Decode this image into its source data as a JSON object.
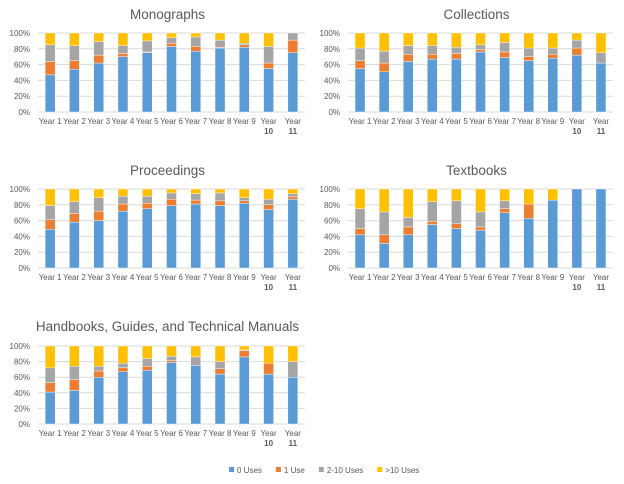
{
  "colors": {
    "0 Uses": "#5B9BD5",
    "1 Use": "#ED7D31",
    "2-10 Uses": "#A5A5A5",
    ">10 Uses": "#FFC000"
  },
  "legend": [
    "0 Uses",
    "1 Use",
    "2-10 Uses",
    ">10 Uses"
  ],
  "legend_placement": "bottom",
  "chart_data": [
    {
      "type": "bar",
      "stacked": "percent",
      "title": "Monographs",
      "ylim": [
        0,
        100
      ],
      "yticks": [
        "0%",
        "20%",
        "40%",
        "60%",
        "80%",
        "100%"
      ],
      "grid": true,
      "categories": [
        "Year 1",
        "Year 2",
        "Year 3",
        "Year 4",
        "Year 5",
        "Year 6",
        "Year 7",
        "Year 8",
        "Year 9",
        "Year 10",
        "Year 11"
      ],
      "series": [
        {
          "name": "0 Uses",
          "values": [
            47,
            54,
            62,
            70,
            75,
            83,
            77,
            81,
            82,
            55,
            75
          ]
        },
        {
          "name": "1 Use",
          "values": [
            17,
            11,
            10,
            4,
            1,
            4,
            6,
            1,
            3,
            7,
            16
          ]
        },
        {
          "name": "2-10 Uses",
          "values": [
            21,
            19,
            17,
            10,
            14,
            7,
            12,
            9,
            2,
            21,
            9
          ]
        },
        {
          "name": ">10 Uses",
          "values": [
            15,
            16,
            11,
            16,
            10,
            6,
            5,
            9,
            13,
            17,
            0
          ]
        }
      ]
    },
    {
      "type": "bar",
      "stacked": "percent",
      "title": "Collections",
      "ylim": [
        0,
        100
      ],
      "yticks": [
        "0%",
        "20%",
        "40%",
        "60%",
        "80%",
        "100%"
      ],
      "grid": true,
      "categories": [
        "Year 1",
        "Year 2",
        "Year 3",
        "Year 4",
        "Year 5",
        "Year 6",
        "Year 7",
        "Year 8",
        "Year 9",
        "Year 10",
        "Year 11"
      ],
      "series": [
        {
          "name": "0 Uses",
          "values": [
            55,
            51,
            64,
            67,
            67,
            76,
            69,
            65,
            68,
            72,
            62
          ]
        },
        {
          "name": "1 Use",
          "values": [
            10,
            11,
            9,
            6,
            7,
            3,
            7,
            5,
            5,
            9,
            0
          ]
        },
        {
          "name": "2-10 Uses",
          "values": [
            16,
            15,
            11,
            11,
            8,
            6,
            12,
            11,
            8,
            10,
            13
          ]
        },
        {
          "name": ">10 Uses",
          "values": [
            19,
            23,
            16,
            16,
            18,
            15,
            12,
            19,
            19,
            9,
            25
          ]
        }
      ]
    },
    {
      "type": "bar",
      "stacked": "percent",
      "title": "Proceedings",
      "ylim": [
        0,
        100
      ],
      "yticks": [
        "0%",
        "20%",
        "40%",
        "60%",
        "80%",
        "100%"
      ],
      "grid": true,
      "categories": [
        "Year 1",
        "Year 2",
        "Year 3",
        "Year 4",
        "Year 5",
        "Year 6",
        "Year 7",
        "Year 8",
        "Year 9",
        "Year 10",
        "Year 11"
      ],
      "series": [
        {
          "name": "0 Uses",
          "values": [
            49,
            58,
            60,
            72,
            75,
            79,
            81,
            79,
            82,
            74,
            87
          ]
        },
        {
          "name": "1 Use",
          "values": [
            12,
            11,
            12,
            9,
            7,
            8,
            5,
            6,
            3,
            6,
            3
          ]
        },
        {
          "name": "2-10 Uses",
          "values": [
            18,
            15,
            17,
            10,
            9,
            8,
            8,
            10,
            4,
            7,
            4
          ]
        },
        {
          "name": ">10 Uses",
          "values": [
            21,
            16,
            11,
            9,
            9,
            5,
            6,
            5,
            11,
            13,
            6
          ]
        }
      ]
    },
    {
      "type": "bar",
      "stacked": "percent",
      "title": "Textbooks",
      "ylim": [
        0,
        100
      ],
      "yticks": [
        "0%",
        "20%",
        "40%",
        "60%",
        "80%",
        "100%"
      ],
      "grid": true,
      "categories": [
        "Year 1",
        "Year 2",
        "Year 3",
        "Year 4",
        "Year 5",
        "Year 6",
        "Year 7",
        "Year 8",
        "Year 9",
        "Year 10",
        "Year 11"
      ],
      "series": [
        {
          "name": "0 Uses",
          "values": [
            42,
            31,
            42,
            55,
            50,
            48,
            70,
            63,
            86,
            100,
            100
          ]
        },
        {
          "name": "1 Use",
          "values": [
            8,
            11,
            10,
            4,
            6,
            4,
            5,
            18,
            0,
            0,
            0
          ]
        },
        {
          "name": "2-10 Uses",
          "values": [
            25,
            29,
            12,
            25,
            29,
            19,
            10,
            0,
            0,
            0,
            0
          ]
        },
        {
          "name": ">10 Uses",
          "values": [
            25,
            29,
            36,
            16,
            15,
            29,
            15,
            19,
            14,
            0,
            0
          ]
        }
      ]
    },
    {
      "type": "bar",
      "stacked": "percent",
      "title": "Handbooks, Guides, and Technical Manuals",
      "ylim": [
        0,
        100
      ],
      "yticks": [
        "0%",
        "20%",
        "40%",
        "60%",
        "80%",
        "100%"
      ],
      "grid": true,
      "categories": [
        "Year 1",
        "Year 2",
        "Year 3",
        "Year 4",
        "Year 5",
        "Year 6",
        "Year 7",
        "Year 8",
        "Year 9",
        "Year 10",
        "Year 11"
      ],
      "series": [
        {
          "name": "0 Uses",
          "values": [
            41,
            43,
            60,
            67,
            69,
            79,
            75,
            64,
            86,
            64,
            60
          ]
        },
        {
          "name": "1 Use",
          "values": [
            12,
            14,
            8,
            5,
            5,
            2,
            0,
            7,
            8,
            14,
            0
          ]
        },
        {
          "name": "2-10 Uses",
          "values": [
            19,
            17,
            6,
            6,
            10,
            6,
            11,
            9,
            1,
            0,
            20
          ]
        },
        {
          "name": ">10 Uses",
          "values": [
            28,
            26,
            26,
            22,
            16,
            13,
            14,
            20,
            5,
            22,
            20
          ]
        }
      ]
    }
  ]
}
